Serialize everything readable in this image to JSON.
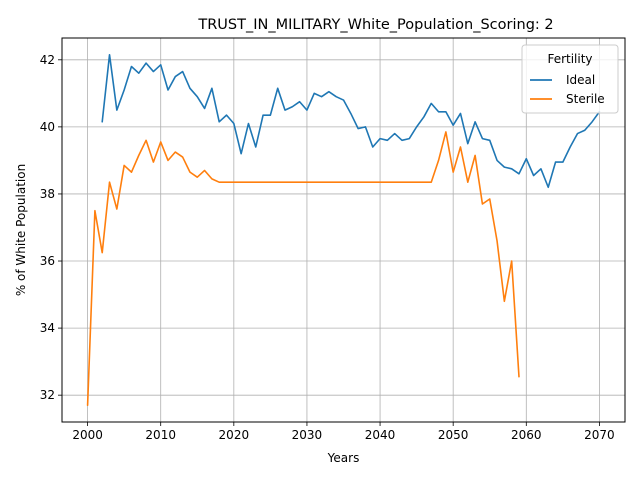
{
  "chart_data": {
    "type": "line",
    "title": "TRUST_IN_MILITARY_White_Population_Scoring: 2",
    "xlabel": "Years",
    "ylabel": "% of White Population",
    "xlim": [
      1996.5,
      2073.5
    ],
    "ylim": [
      31.2,
      42.65
    ],
    "xticks": [
      2000,
      2010,
      2020,
      2030,
      2040,
      2050,
      2060,
      2070
    ],
    "yticks": [
      32,
      34,
      36,
      38,
      40,
      42
    ],
    "grid": true,
    "legend": {
      "title": "Fertility",
      "placement": "top-right"
    },
    "series": [
      {
        "name": "Ideal",
        "color": "#1f77b4",
        "x": [
          2002,
          2003,
          2004,
          2005,
          2006,
          2007,
          2008,
          2009,
          2010,
          2011,
          2012,
          2013,
          2014,
          2015,
          2016,
          2017,
          2018,
          2019,
          2020,
          2021,
          2022,
          2023,
          2024,
          2025,
          2026,
          2027,
          2028,
          2029,
          2030,
          2031,
          2032,
          2033,
          2034,
          2035,
          2036,
          2037,
          2038,
          2039,
          2040,
          2041,
          2042,
          2043,
          2044,
          2045,
          2046,
          2047,
          2048,
          2049,
          2050,
          2051,
          2052,
          2053,
          2054,
          2055,
          2056,
          2057,
          2058,
          2059,
          2060,
          2061,
          2062,
          2063,
          2064,
          2065,
          2066,
          2067,
          2068,
          2069,
          2070
        ],
        "values": [
          40.15,
          42.15,
          40.5,
          41.1,
          41.8,
          41.6,
          41.9,
          41.65,
          41.85,
          41.1,
          41.5,
          41.65,
          41.15,
          40.9,
          40.55,
          41.15,
          40.15,
          40.35,
          40.1,
          39.2,
          40.1,
          39.4,
          40.35,
          40.35,
          41.15,
          40.5,
          40.6,
          40.75,
          40.5,
          41.0,
          40.9,
          41.05,
          40.9,
          40.8,
          40.4,
          39.95,
          40.0,
          39.4,
          39.65,
          39.6,
          39.8,
          39.6,
          39.65,
          40.0,
          40.3,
          40.7,
          40.45,
          40.45,
          40.05,
          40.4,
          39.5,
          40.15,
          39.65,
          39.6,
          39.0,
          38.8,
          38.75,
          38.6,
          39.05,
          38.55,
          38.75,
          38.2,
          38.95,
          38.95,
          39.4,
          39.8,
          39.9,
          40.15,
          40.45
        ]
      },
      {
        "name": "Sterile",
        "color": "#ff7f0e",
        "x": [
          2000,
          2001,
          2002,
          2003,
          2004,
          2005,
          2006,
          2007,
          2008,
          2009,
          2010,
          2011,
          2012,
          2013,
          2014,
          2015,
          2016,
          2017,
          2018,
          2019,
          2020,
          2021,
          2022,
          2023,
          2024,
          2025,
          2026,
          2027,
          2028,
          2029,
          2030,
          2031,
          2032,
          2033,
          2034,
          2035,
          2036,
          2037,
          2038,
          2039,
          2040,
          2041,
          2042,
          2043,
          2044,
          2045,
          2046,
          2047,
          2048,
          2049,
          2050,
          2051,
          2052,
          2053,
          2054,
          2055,
          2056,
          2057,
          2058,
          2059
        ],
        "values": [
          31.7,
          37.5,
          36.25,
          38.35,
          37.55,
          38.85,
          38.65,
          39.15,
          39.6,
          38.95,
          39.55,
          39.0,
          39.25,
          39.1,
          38.65,
          38.5,
          38.7,
          38.45,
          38.35,
          38.35,
          38.35,
          38.35,
          38.35,
          38.35,
          38.35,
          38.35,
          38.35,
          38.35,
          38.35,
          38.35,
          38.35,
          38.35,
          38.35,
          38.35,
          38.35,
          38.35,
          38.35,
          38.35,
          38.35,
          38.35,
          38.35,
          38.35,
          38.35,
          38.35,
          38.35,
          38.35,
          38.35,
          38.35,
          39.0,
          39.85,
          38.65,
          39.4,
          38.35,
          39.15,
          37.7,
          37.85,
          36.6,
          34.8,
          36.0,
          32.55
        ]
      }
    ]
  }
}
